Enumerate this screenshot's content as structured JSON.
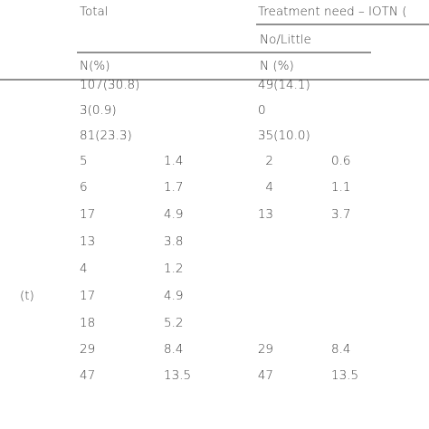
{
  "header": {
    "total": "Total",
    "treatment": "Treatment need – IOTN (",
    "subheader": "No/Little",
    "n_total": "N(%)",
    "n_need": "N (%)"
  },
  "table": {
    "rows": [
      {
        "total": "107(30.8)",
        "need": "49(14.1)"
      },
      {
        "total": "3(0.9)",
        "need": "0"
      },
      {
        "total": "81(23.3)",
        "need": "35(10.0)"
      },
      {
        "total_n": "5",
        "total_pct": "1.4",
        "need_n": "2",
        "need_pct": "0.6"
      },
      {
        "total_n": "6",
        "total_pct": "1.7",
        "need_n": "4",
        "need_pct": "1.1"
      },
      {
        "total_n": "17",
        "total_pct": "4.9",
        "need_n": "13",
        "need_pct": "3.7"
      },
      {
        "total_n": "13",
        "total_pct": "3.8"
      },
      {
        "total_n": "4",
        "total_pct": "1.2"
      },
      {
        "stub": "(t)",
        "total_n": "17",
        "total_pct": "4.9"
      },
      {
        "total_n": "18",
        "total_pct": "5.2"
      },
      {
        "total_n": "29",
        "total_pct": "8.4",
        "need_n": "29",
        "need_pct": "8.4"
      },
      {
        "total_n": "47",
        "total_pct": "13.5",
        "need_n": "47",
        "need_pct": "13.5"
      }
    ]
  }
}
